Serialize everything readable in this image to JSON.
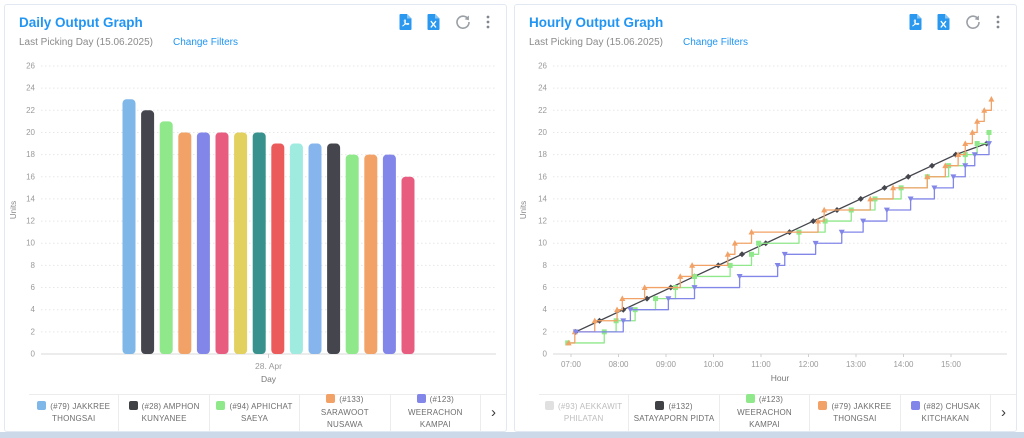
{
  "accent_color": "#2095f3",
  "page": {
    "bottom_strip_color": "#ccd9e8"
  },
  "panels": [
    {
      "title": "Daily Output Graph",
      "subtitle": "Last Picking Day (15.06.2025)",
      "change_filters_label": "Change Filters",
      "legend_next_glyph": "›",
      "legend": [
        {
          "label": "(#79) JAKKREE THONGSAI",
          "color": "#7FB7E8",
          "disabled": false
        },
        {
          "label": "(#28) AMPHON KUNYANEE",
          "color": "#3F4145",
          "disabled": false
        },
        {
          "label": "(#94) APHICHAT SAEYA",
          "color": "#8FE88A",
          "disabled": false
        },
        {
          "label": "(#133) SARAWOOT NUSAWA",
          "color": "#F2A266",
          "disabled": false
        },
        {
          "label": "(#123) WEERACHON KAMPAI",
          "color": "#8286E8",
          "disabled": false
        }
      ]
    },
    {
      "title": "Hourly Output Graph",
      "subtitle": "Last Picking Day (15.06.2025)",
      "change_filters_label": "Change Filters",
      "legend_next_glyph": "›",
      "legend": [
        {
          "label": "(#93) AEKKAWIT PHILATAN",
          "color": "#e0e0e0",
          "disabled": true
        },
        {
          "label": "(#132) SATAYAPORN PIDTA",
          "color": "#3F4145",
          "disabled": false
        },
        {
          "label": "(#123) WEERACHON KAMPAI",
          "color": "#8FE88A",
          "disabled": false
        },
        {
          "label": "(#79) JAKKREE THONGSAI",
          "color": "#F2A266",
          "disabled": false
        },
        {
          "label": "(#82) CHUSAK KITCHAKAN",
          "color": "#8286E8",
          "disabled": false
        }
      ]
    }
  ],
  "chart_data": [
    {
      "type": "bar",
      "title": "Daily Output Graph",
      "xlabel": "Day",
      "ylabel": "Units",
      "x_tick_label": "28. Apr",
      "ylim": [
        0,
        26
      ],
      "ytick_step": 2,
      "grid": true,
      "values": [
        23,
        22,
        21,
        20,
        20,
        20,
        20,
        20,
        19,
        19,
        19,
        19,
        18,
        18,
        18,
        16
      ],
      "colors": [
        "#7FB7E8",
        "#45464D",
        "#8FE88A",
        "#F2A266",
        "#8286E8",
        "#E85C80",
        "#E2D05F",
        "#38918C",
        "#EC5B5B",
        "#9FEBE0",
        "#85B5EC",
        "#45464D",
        "#8FE88A",
        "#F2A266",
        "#8286E8",
        "#E85C80"
      ],
      "legend_position": "bottom",
      "legend_visible_labels": [
        "(#79) JAKKREE THONGSAI",
        "(#28) AMPHON KUNYANEE",
        "(#94) APHICHAT SAEYA",
        "(#133) SARAWOOT NUSAWA",
        "(#123) WEERACHON KAMPAI"
      ]
    },
    {
      "type": "line",
      "title": "Hourly Output Graph",
      "xlabel": "Hour",
      "ylabel": "Units",
      "ylim": [
        0,
        26
      ],
      "ytick_step": 2,
      "grid": true,
      "xticks": [
        "07:00",
        "08:00",
        "09:00",
        "10:00",
        "11:00",
        "12:00",
        "13:00",
        "14:00",
        "15:00"
      ],
      "xtick_hours": [
        7,
        8,
        9,
        10,
        11,
        12,
        13,
        14,
        15
      ],
      "legend_position": "bottom",
      "series": [
        {
          "name": "(#93) AEKKAWIT PHILATAN",
          "color": "#e0e0e0",
          "hidden": true,
          "style": "step",
          "marker": "square",
          "points": []
        },
        {
          "name": "(#132) SATAYAPORN PIDTA",
          "color": "#45464D",
          "hidden": false,
          "style": "line",
          "marker": "diamond",
          "points": [
            [
              7.1,
              2
            ],
            [
              7.6,
              3
            ],
            [
              8.1,
              4
            ],
            [
              8.6,
              5
            ],
            [
              9.1,
              6
            ],
            [
              9.6,
              7
            ],
            [
              10.1,
              8
            ],
            [
              10.6,
              9
            ],
            [
              11.1,
              10
            ],
            [
              11.6,
              11
            ],
            [
              12.1,
              12
            ],
            [
              12.6,
              13
            ],
            [
              13.1,
              14
            ],
            [
              13.6,
              15
            ],
            [
              14.1,
              16
            ],
            [
              14.6,
              17
            ],
            [
              15.1,
              18
            ],
            [
              15.75,
              19
            ]
          ]
        },
        {
          "name": "(#123) WEERACHON KAMPAI",
          "color": "#8FE88A",
          "hidden": false,
          "style": "step",
          "marker": "square",
          "points": [
            [
              6.93,
              1
            ],
            [
              7.7,
              2
            ],
            [
              7.95,
              3
            ],
            [
              8.35,
              4
            ],
            [
              8.78,
              5
            ],
            [
              9.2,
              6
            ],
            [
              9.6,
              7
            ],
            [
              10.35,
              8
            ],
            [
              10.8,
              9
            ],
            [
              10.95,
              10
            ],
            [
              11.8,
              11
            ],
            [
              12.35,
              12
            ],
            [
              12.9,
              13
            ],
            [
              13.4,
              14
            ],
            [
              13.95,
              15
            ],
            [
              14.5,
              16
            ],
            [
              14.95,
              17
            ],
            [
              15.3,
              18
            ],
            [
              15.55,
              19
            ],
            [
              15.8,
              20
            ]
          ]
        },
        {
          "name": "(#79) JAKKREE THONGSAI",
          "color": "#F2A266",
          "hidden": false,
          "style": "step",
          "marker": "triangle-up",
          "points": [
            [
              6.95,
              1
            ],
            [
              7.08,
              2
            ],
            [
              7.5,
              3
            ],
            [
              7.97,
              4
            ],
            [
              8.08,
              5
            ],
            [
              8.55,
              6
            ],
            [
              9.3,
              7
            ],
            [
              9.55,
              8
            ],
            [
              10.3,
              9
            ],
            [
              10.45,
              10
            ],
            [
              10.8,
              11
            ],
            [
              12.2,
              12
            ],
            [
              12.33,
              13
            ],
            [
              13.3,
              14
            ],
            [
              13.78,
              15
            ],
            [
              14.5,
              16
            ],
            [
              14.88,
              17
            ],
            [
              15.15,
              18
            ],
            [
              15.3,
              19
            ],
            [
              15.45,
              20
            ],
            [
              15.55,
              21
            ],
            [
              15.7,
              22
            ],
            [
              15.85,
              23
            ]
          ]
        },
        {
          "name": "(#82) CHUSAK KITCHAKAN",
          "color": "#8286E8",
          "hidden": false,
          "style": "step",
          "marker": "triangle-down",
          "points": [
            [
              7.1,
              2
            ],
            [
              8.1,
              3
            ],
            [
              8.25,
              4
            ],
            [
              9.05,
              5
            ],
            [
              9.6,
              6
            ],
            [
              10.55,
              7
            ],
            [
              11.35,
              8
            ],
            [
              11.5,
              9
            ],
            [
              12.15,
              10
            ],
            [
              12.7,
              11
            ],
            [
              13.15,
              12
            ],
            [
              13.65,
              13
            ],
            [
              14.15,
              14
            ],
            [
              14.65,
              15
            ],
            [
              15.05,
              16
            ],
            [
              15.3,
              17
            ],
            [
              15.5,
              18
            ],
            [
              15.8,
              19
            ]
          ]
        }
      ]
    }
  ]
}
